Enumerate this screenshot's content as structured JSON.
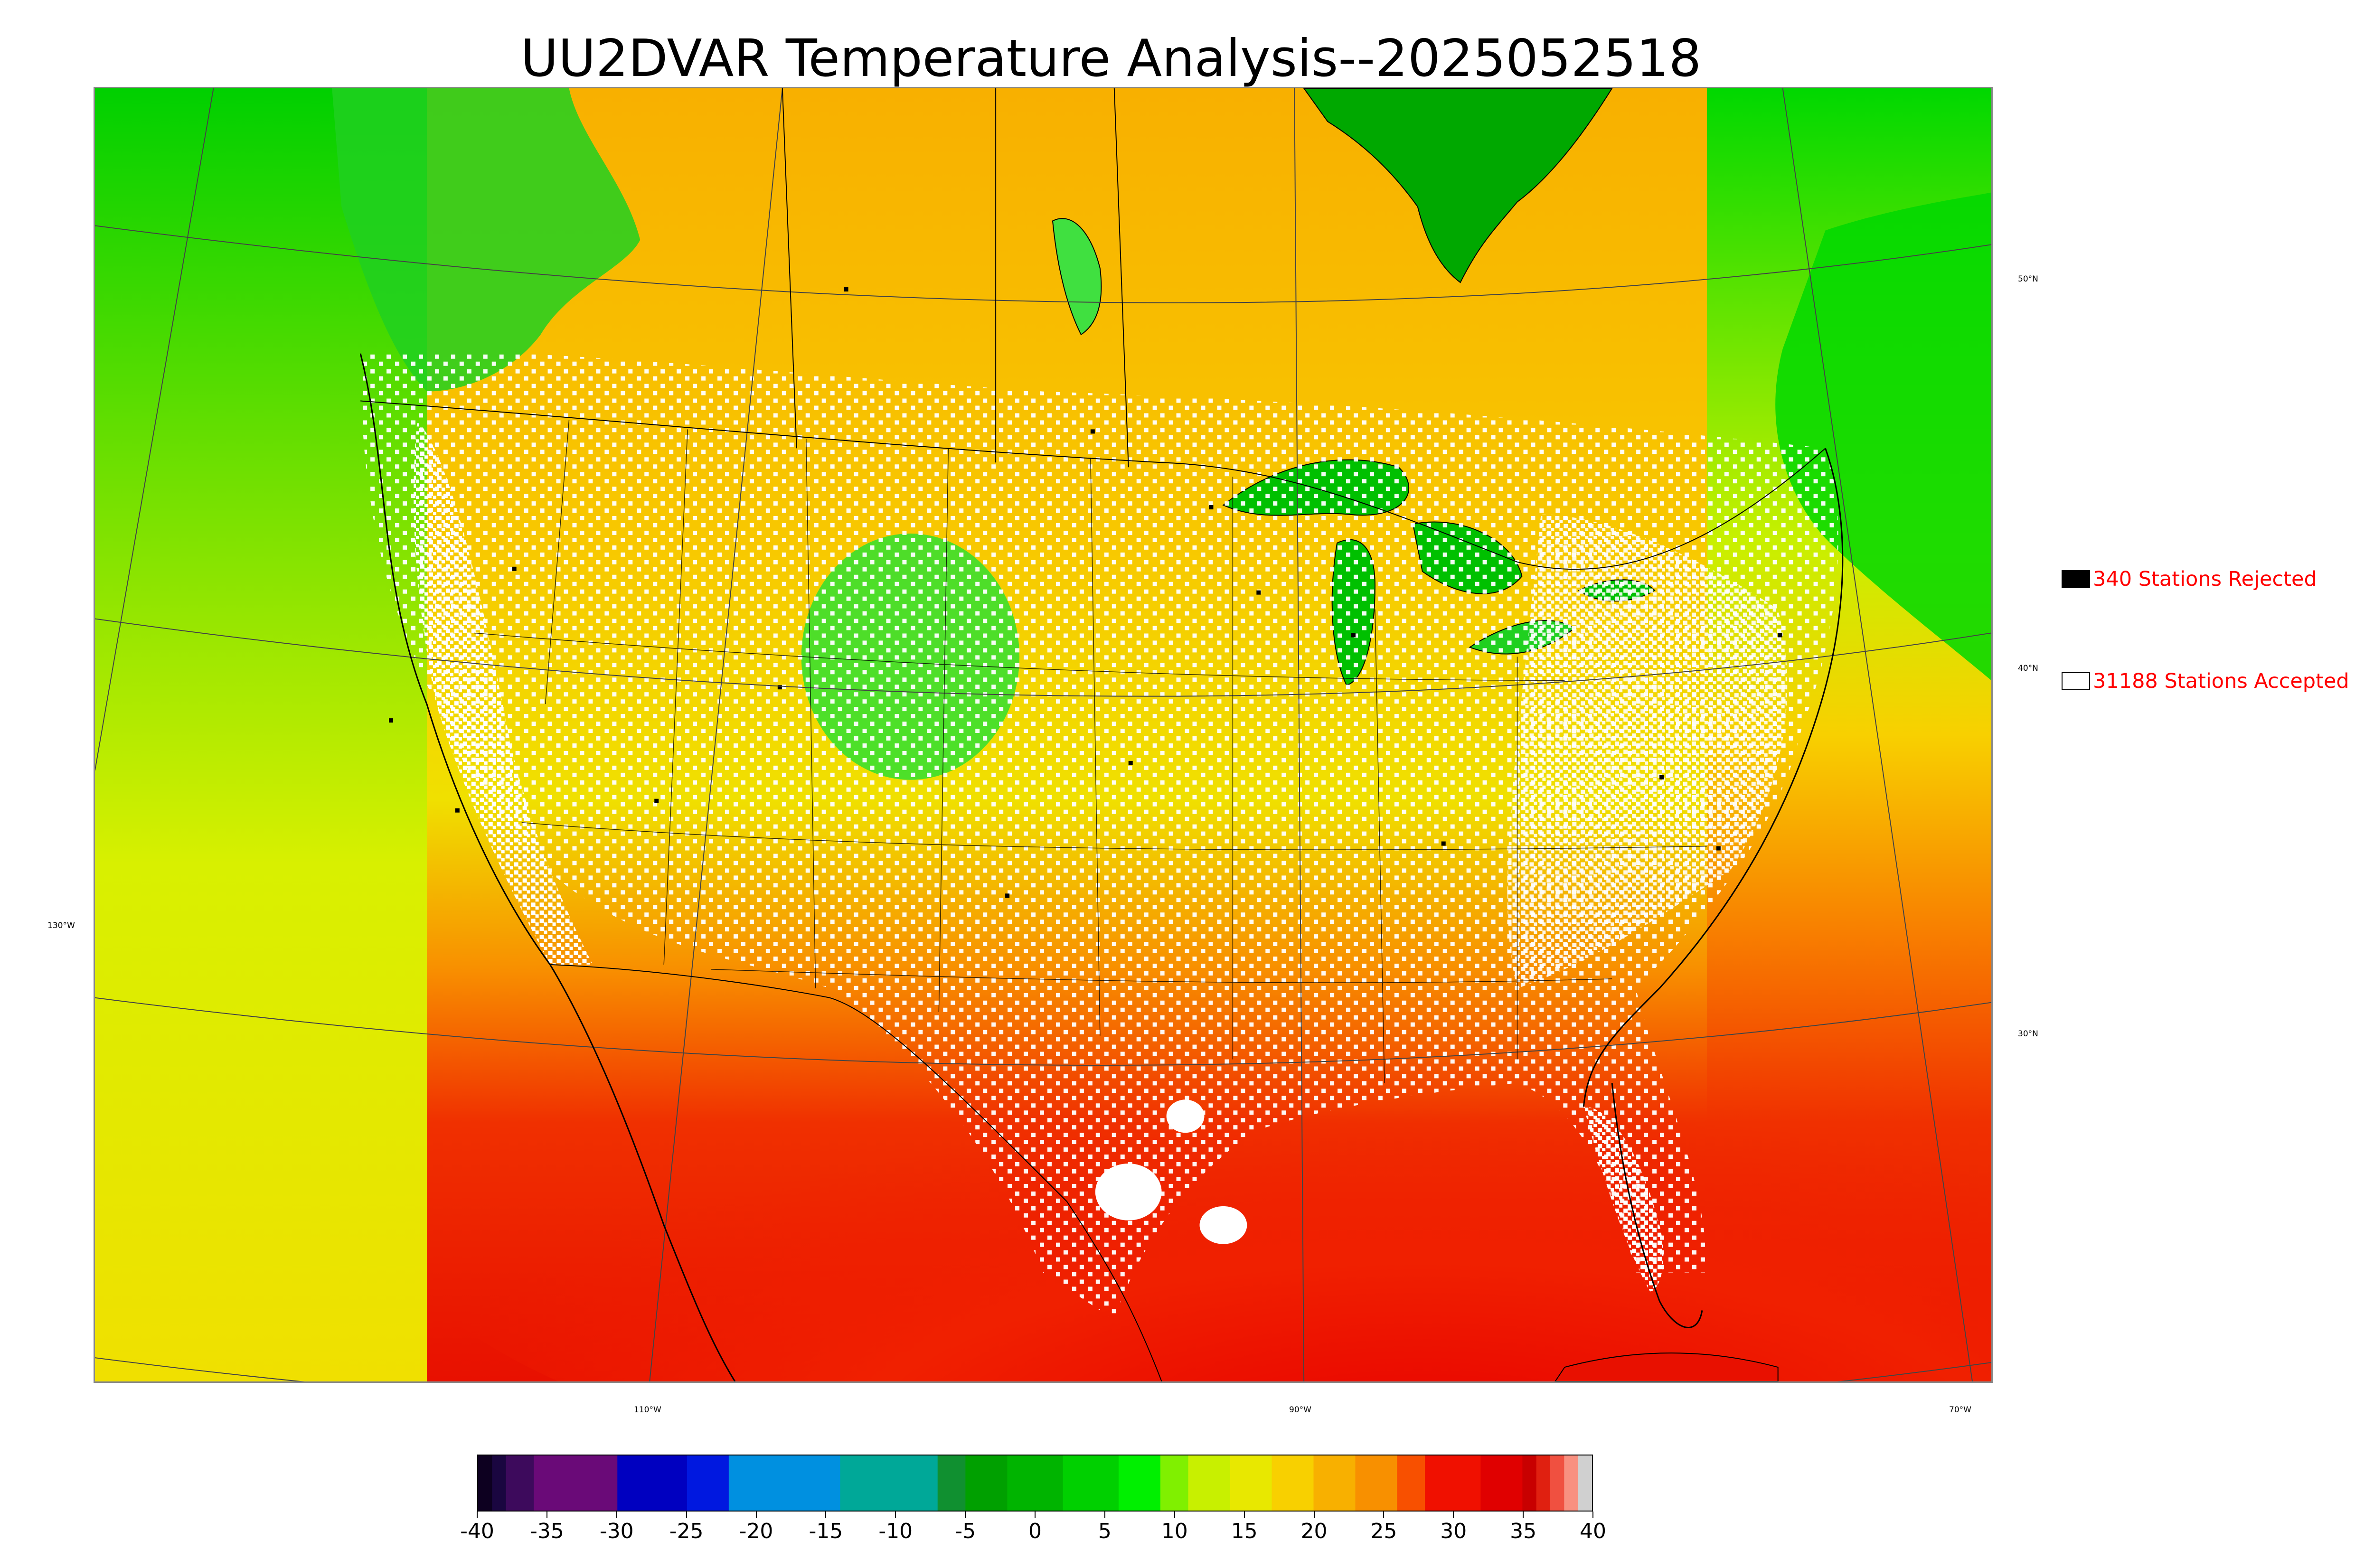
{
  "title": "UU2DVAR Temperature Analysis--2025052518",
  "map": {
    "lat_labels": [
      {
        "text": "50°N"
      },
      {
        "text": "40°N"
      },
      {
        "text": "30°N"
      }
    ],
    "lon_labels": [
      {
        "text": "130°W"
      },
      {
        "text": "110°W"
      },
      {
        "text": "90°W"
      },
      {
        "text": "70°W"
      }
    ]
  },
  "legend": {
    "rejected": {
      "label": "340 Stations Rejected",
      "swatch": "#000000"
    },
    "accepted": {
      "label": "31188 Stations Accepted",
      "swatch": "#ffffff"
    }
  },
  "colorbar": {
    "min": -40,
    "max": 40,
    "ticks": [
      "-40",
      "-35",
      "-30",
      "-25",
      "-20",
      "-15",
      "-10",
      "-5",
      "0",
      "5",
      "10",
      "15",
      "20",
      "25",
      "30",
      "35",
      "40"
    ],
    "colors": [
      {
        "from": -40,
        "to": -39,
        "color": "#0d0020"
      },
      {
        "from": -39,
        "to": -38,
        "color": "#1a0640"
      },
      {
        "from": -38,
        "to": -36,
        "color": "#3d0a5c"
      },
      {
        "from": -36,
        "to": -30,
        "color": "#6a0a78"
      },
      {
        "from": -30,
        "to": -25,
        "color": "#0000c0"
      },
      {
        "from": -25,
        "to": -22,
        "color": "#0018e0"
      },
      {
        "from": -22,
        "to": -14,
        "color": "#0090e0"
      },
      {
        "from": -14,
        "to": -7,
        "color": "#00a898"
      },
      {
        "from": -7,
        "to": -5,
        "color": "#109030"
      },
      {
        "from": -5,
        "to": -2,
        "color": "#00a000"
      },
      {
        "from": -2,
        "to": 2,
        "color": "#00b400"
      },
      {
        "from": 2,
        "to": 6,
        "color": "#00d000"
      },
      {
        "from": 6,
        "to": 9,
        "color": "#00f000"
      },
      {
        "from": 9,
        "to": 11,
        "color": "#80f000"
      },
      {
        "from": 11,
        "to": 14,
        "color": "#c8f000"
      },
      {
        "from": 14,
        "to": 17,
        "color": "#e8e800"
      },
      {
        "from": 17,
        "to": 20,
        "color": "#f8d000"
      },
      {
        "from": 20,
        "to": 23,
        "color": "#f8b000"
      },
      {
        "from": 23,
        "to": 26,
        "color": "#f89000"
      },
      {
        "from": 26,
        "to": 28,
        "color": "#f85000"
      },
      {
        "from": 28,
        "to": 32,
        "color": "#f01000"
      },
      {
        "from": 32,
        "to": 35,
        "color": "#e00000"
      },
      {
        "from": 35,
        "to": 36,
        "color": "#c80000"
      },
      {
        "from": 36,
        "to": 37,
        "color": "#e02010"
      },
      {
        "from": 37,
        "to": 38,
        "color": "#f05040"
      },
      {
        "from": 38,
        "to": 39,
        "color": "#f89080"
      },
      {
        "from": 39,
        "to": 40,
        "color": "#d0d0d0"
      }
    ]
  }
}
